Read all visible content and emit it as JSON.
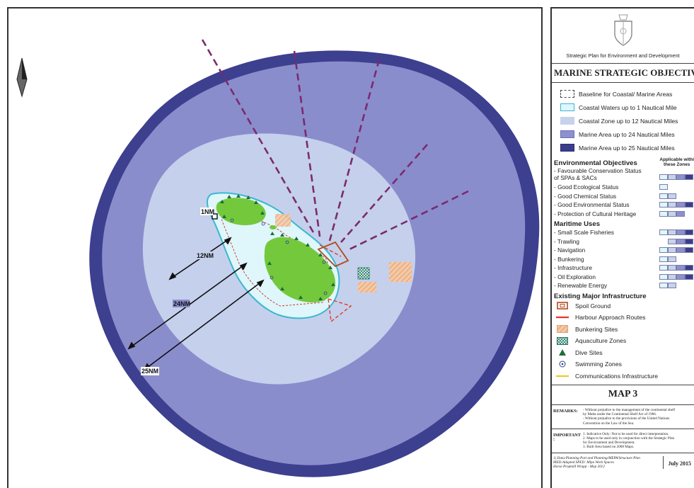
{
  "map": {
    "scale_labels": {
      "nm1": "1NM",
      "nm12": "12NM",
      "nm24": "24NM",
      "nm25": "25NM"
    },
    "colors": {
      "nm25": "#3d3f8f",
      "nm24": "#8a8dcc",
      "nm12": "#c5d0ec",
      "nm1": "#dff6fb",
      "land": "#74c83c",
      "corridor": "#7a2b6e"
    }
  },
  "legend": {
    "plan_title": "Strategic Plan for Environment and Development",
    "objectives_title": "MARINE STRATEGIC OBJECTIVES",
    "zones": [
      {
        "label": "Baseline for Coastal/ Marine Areas",
        "fill": "#ffffff",
        "border": "dashed"
      },
      {
        "label": "Coastal Waters up to 1 Nautical Mile",
        "fill": "#dff6fb",
        "border": "#3bb8cf"
      },
      {
        "label": "Coastal Zone up to 12 Nautical Miles",
        "fill": "#c7d2ec",
        "border": "#c7d2ec"
      },
      {
        "label": "Marine Area up to 24 Nautical Miles",
        "fill": "#8d8fcf",
        "border": "#6c6fb6"
      },
      {
        "label": "Marine Area up to 25 Nautical Miles",
        "fill": "#3a3c8c",
        "border": "#2a2c70"
      }
    ],
    "env_title": "Environmental Objectives",
    "applicable_label": [
      "Applicable withi",
      "these Zones"
    ],
    "env_objectives": [
      {
        "label": [
          "- Favourable Conservation Status",
          "  of SPAs & SACs"
        ],
        "bars": [
          "c1",
          "c2",
          "c3",
          "c4"
        ]
      },
      {
        "label": [
          "- Good Ecological Status"
        ],
        "bars": [
          "c1"
        ]
      },
      {
        "label": [
          "- Good Chemical Status"
        ],
        "bars": [
          "c1",
          "c2"
        ]
      },
      {
        "label": [
          "- Good Environmental Status"
        ],
        "bars": [
          "c1",
          "c2",
          "c3",
          "c4"
        ]
      },
      {
        "label": [
          "- Protection of Cultural Heritage"
        ],
        "bars": [
          "c1",
          "c2",
          "c3"
        ]
      }
    ],
    "maritime_title": "Maritime Uses",
    "maritime_uses": [
      {
        "label": "- Small Scale Fisheries",
        "bars": [
          "c1",
          "c2",
          "c3",
          "c4"
        ]
      },
      {
        "label": "- Trawling",
        "bars": [
          "e",
          "c2",
          "c3",
          "c4"
        ]
      },
      {
        "label": "- Navigation",
        "bars": [
          "c1",
          "c2",
          "c3",
          "c4"
        ]
      },
      {
        "label": "- Bunkering",
        "bars": [
          "c1",
          "c2"
        ]
      },
      {
        "label": "- Infrastructure",
        "bars": [
          "c1",
          "c2",
          "c3",
          "c4"
        ]
      },
      {
        "label": "- Oil Exploration",
        "bars": [
          "c1",
          "c2",
          "c3",
          "c4"
        ]
      },
      {
        "label": "- Renewable Energy",
        "bars": [
          "c1",
          "c2"
        ]
      }
    ],
    "infra_title": "Existing Major Infrastructure",
    "infrastructure": [
      {
        "label": "Spoil Ground",
        "icon": "spoil-ground-icon"
      },
      {
        "label": "Harbour Approach Routes",
        "icon": "harbour-route-icon"
      },
      {
        "label": "Bunkering Sites",
        "icon": "bunkering-site-icon"
      },
      {
        "label": "Aquaculture Zones",
        "icon": "aquaculture-zone-icon"
      },
      {
        "label": "Dive Sites",
        "icon": "dive-site-icon"
      },
      {
        "label": "Swimming Zones",
        "icon": "swimming-zone-icon"
      },
      {
        "label": "Communications Infrastructure",
        "icon": "communications-line-icon"
      }
    ],
    "map_title": "MAP 3",
    "remarks_label": "REMARKS:",
    "remarks": [
      "- Without prejudice to the management of the continental shelf",
      "  by Malta under the Continental Shelf Act of 1966.",
      "- Without prejudice to the provisions of the United Nations",
      "  Convention on the Law of the Sea."
    ],
    "important_label": "IMPORTANT :",
    "important": [
      "1. Indicative Only: Not to be used for direct interpretation.",
      "2. Maps to be used only in conjunction with the Strategic Plan",
      "   for Environment and Development.",
      "3. Built Area based on 2008 Maps."
    ],
    "sources": [
      "1) Data:Planning Part and Planning/MEPA/Structure Plan",
      "MED:Adapted SPED: Mlpa Work Spaces",
      "Horse Propmill Wrapp - Map 2012"
    ],
    "date": "July 2015"
  }
}
